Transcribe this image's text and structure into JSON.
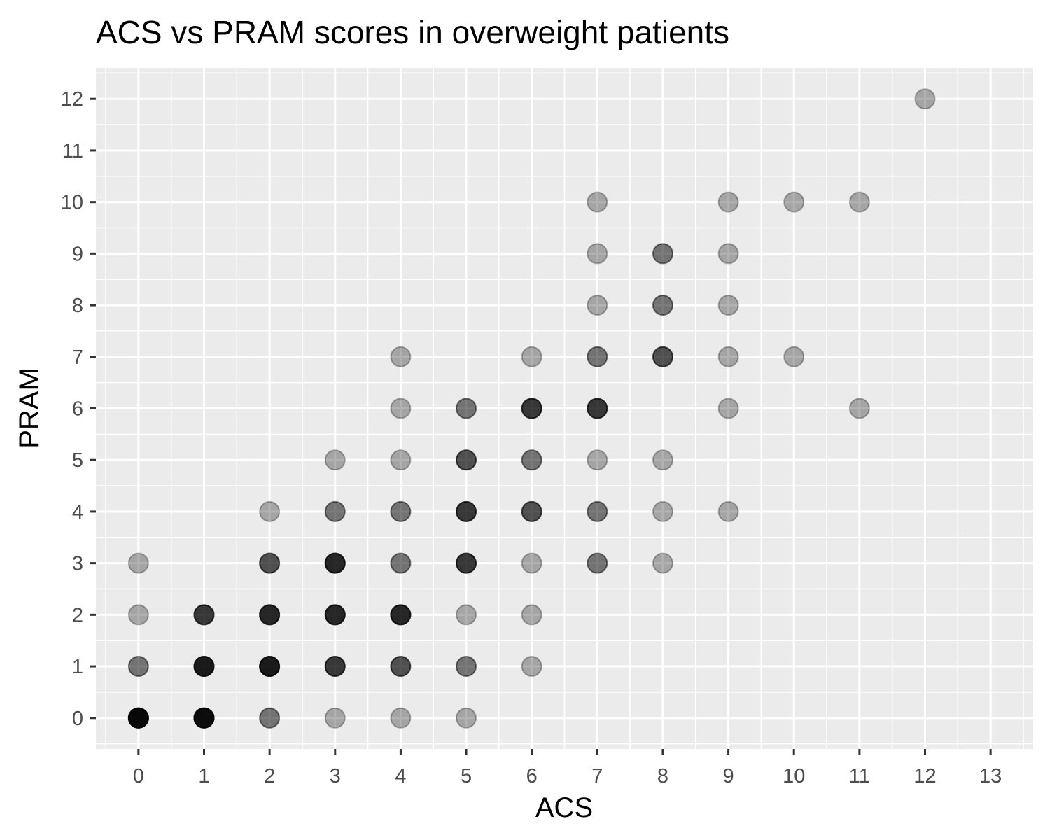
{
  "chart_data": {
    "type": "scatter",
    "title": "ACS vs PRAM scores in overweight patients",
    "xlabel": "ACS",
    "ylabel": "PRAM",
    "xlim": [
      -0.65,
      13.65
    ],
    "ylim": [
      -0.6,
      12.6
    ],
    "x_ticks": [
      "0",
      "1",
      "2",
      "3",
      "4",
      "5",
      "6",
      "7",
      "8",
      "9",
      "10",
      "11",
      "12",
      "13"
    ],
    "y_ticks": [
      "0",
      "1",
      "2",
      "3",
      "4",
      "5",
      "6",
      "7",
      "8",
      "9",
      "10",
      "11",
      "12"
    ],
    "grid": true,
    "legend": "none",
    "point_color": "#000000",
    "panel_color": "#ebebeb",
    "grid_color": "#ffffff",
    "point_alpha": 0.3,
    "points": [
      {
        "x": 0,
        "y": 0,
        "n": 9
      },
      {
        "x": 0,
        "y": 1,
        "n": 2
      },
      {
        "x": 0,
        "y": 2,
        "n": 1
      },
      {
        "x": 0,
        "y": 3,
        "n": 1
      },
      {
        "x": 1,
        "y": 0,
        "n": 8
      },
      {
        "x": 1,
        "y": 1,
        "n": 6
      },
      {
        "x": 1,
        "y": 2,
        "n": 4
      },
      {
        "x": 2,
        "y": 0,
        "n": 2
      },
      {
        "x": 2,
        "y": 1,
        "n": 6
      },
      {
        "x": 2,
        "y": 2,
        "n": 5
      },
      {
        "x": 2,
        "y": 3,
        "n": 3
      },
      {
        "x": 2,
        "y": 4,
        "n": 1
      },
      {
        "x": 3,
        "y": 0,
        "n": 1
      },
      {
        "x": 3,
        "y": 1,
        "n": 4
      },
      {
        "x": 3,
        "y": 2,
        "n": 5
      },
      {
        "x": 3,
        "y": 3,
        "n": 5
      },
      {
        "x": 3,
        "y": 4,
        "n": 2
      },
      {
        "x": 3,
        "y": 5,
        "n": 1
      },
      {
        "x": 4,
        "y": 0,
        "n": 1
      },
      {
        "x": 4,
        "y": 1,
        "n": 3
      },
      {
        "x": 4,
        "y": 2,
        "n": 5
      },
      {
        "x": 4,
        "y": 3,
        "n": 2
      },
      {
        "x": 4,
        "y": 4,
        "n": 2
      },
      {
        "x": 4,
        "y": 5,
        "n": 1
      },
      {
        "x": 4,
        "y": 6,
        "n": 1
      },
      {
        "x": 4,
        "y": 7,
        "n": 1
      },
      {
        "x": 5,
        "y": 0,
        "n": 1
      },
      {
        "x": 5,
        "y": 1,
        "n": 2
      },
      {
        "x": 5,
        "y": 2,
        "n": 1
      },
      {
        "x": 5,
        "y": 3,
        "n": 4
      },
      {
        "x": 5,
        "y": 4,
        "n": 4
      },
      {
        "x": 5,
        "y": 5,
        "n": 3
      },
      {
        "x": 5,
        "y": 6,
        "n": 2
      },
      {
        "x": 6,
        "y": 1,
        "n": 1
      },
      {
        "x": 6,
        "y": 2,
        "n": 1
      },
      {
        "x": 6,
        "y": 3,
        "n": 1
      },
      {
        "x": 6,
        "y": 4,
        "n": 3
      },
      {
        "x": 6,
        "y": 5,
        "n": 2
      },
      {
        "x": 6,
        "y": 6,
        "n": 4
      },
      {
        "x": 6,
        "y": 7,
        "n": 1
      },
      {
        "x": 7,
        "y": 3,
        "n": 2
      },
      {
        "x": 7,
        "y": 4,
        "n": 2
      },
      {
        "x": 7,
        "y": 5,
        "n": 1
      },
      {
        "x": 7,
        "y": 6,
        "n": 4
      },
      {
        "x": 7,
        "y": 7,
        "n": 2
      },
      {
        "x": 7,
        "y": 8,
        "n": 1
      },
      {
        "x": 7,
        "y": 9,
        "n": 1
      },
      {
        "x": 7,
        "y": 10,
        "n": 1
      },
      {
        "x": 8,
        "y": 3,
        "n": 1
      },
      {
        "x": 8,
        "y": 4,
        "n": 1
      },
      {
        "x": 8,
        "y": 5,
        "n": 1
      },
      {
        "x": 8,
        "y": 7,
        "n": 3
      },
      {
        "x": 8,
        "y": 8,
        "n": 2
      },
      {
        "x": 8,
        "y": 9,
        "n": 2
      },
      {
        "x": 9,
        "y": 4,
        "n": 1
      },
      {
        "x": 9,
        "y": 6,
        "n": 1
      },
      {
        "x": 9,
        "y": 7,
        "n": 1
      },
      {
        "x": 9,
        "y": 8,
        "n": 1
      },
      {
        "x": 9,
        "y": 9,
        "n": 1
      },
      {
        "x": 9,
        "y": 10,
        "n": 1
      },
      {
        "x": 10,
        "y": 7,
        "n": 1
      },
      {
        "x": 10,
        "y": 10,
        "n": 1
      },
      {
        "x": 11,
        "y": 6,
        "n": 1
      },
      {
        "x": 11,
        "y": 10,
        "n": 1
      },
      {
        "x": 12,
        "y": 12,
        "n": 1
      }
    ]
  }
}
